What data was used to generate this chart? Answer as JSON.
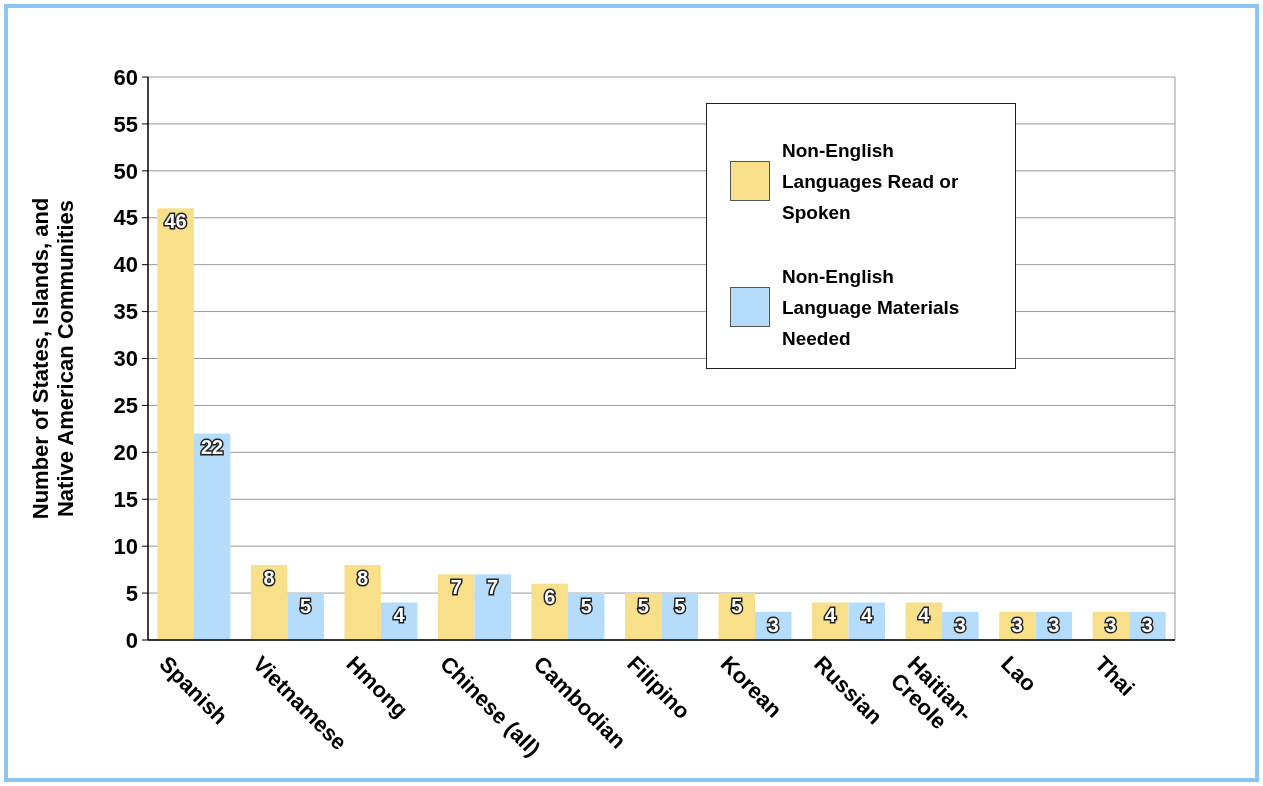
{
  "chart_data": {
    "type": "bar",
    "ylabel": "Number of States, Islands, and Native American Communities",
    "categories": [
      "Spanish",
      "Vietnamese",
      "Hmong",
      "Chinese (all)",
      "Cambodian",
      "Filipino",
      "Korean",
      "Russian",
      "Haitian-Creole",
      "Lao",
      "Thai"
    ],
    "series": [
      {
        "name": "Non-English Languages Read or Spoken",
        "color": "#f8e08b",
        "values": [
          46,
          8,
          8,
          7,
          6,
          5,
          5,
          4,
          4,
          3,
          3
        ]
      },
      {
        "name": "Non-English Language Materials Needed",
        "color": "#b5dcfa",
        "values": [
          22,
          5,
          4,
          7,
          5,
          5,
          3,
          4,
          3,
          3,
          3
        ]
      }
    ],
    "ylim": [
      0,
      60
    ],
    "yticks": [
      0,
      5,
      10,
      15,
      20,
      25,
      30,
      35,
      40,
      45,
      50,
      55,
      60
    ],
    "grid": "y",
    "legend": "top right",
    "data_labels": true
  }
}
